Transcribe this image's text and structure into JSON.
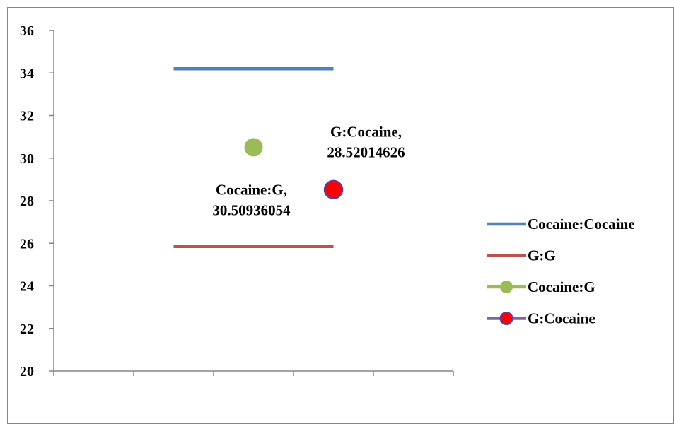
{
  "chart_data": {
    "type": "line",
    "title": "",
    "xlabel": "",
    "ylabel": "",
    "ylim": [
      20,
      36
    ],
    "yticks": [
      20,
      22,
      24,
      26,
      28,
      30,
      32,
      34,
      36
    ],
    "x_categories": 5,
    "grid": false,
    "legend_position": "right",
    "series": [
      {
        "name": "Cocaine:Cocaine",
        "kind": "line",
        "color": "#4F81BD",
        "points": [
          {
            "x": 2,
            "y": 34.2
          },
          {
            "x": 4,
            "y": 34.2
          }
        ]
      },
      {
        "name": "G:G",
        "kind": "line",
        "color": "#C0504D",
        "points": [
          {
            "x": 2,
            "y": 25.85
          },
          {
            "x": 4,
            "y": 25.85
          }
        ]
      },
      {
        "name": "Cocaine:G",
        "kind": "marker",
        "color": "#9BBB59",
        "line_color": "#9BBB59",
        "points": [
          {
            "x": 3,
            "y": 30.50936054
          }
        ],
        "label": [
          "Cocaine:G,",
          "30.50936054"
        ]
      },
      {
        "name": "G:Cocaine",
        "kind": "marker",
        "color": "#FF0000",
        "marker_edge": "#5B3FA0",
        "line_color": "#8064A2",
        "points": [
          {
            "x": 4,
            "y": 28.52014626
          }
        ],
        "label": [
          "G:Cocaine,",
          "28.52014626"
        ]
      }
    ]
  }
}
